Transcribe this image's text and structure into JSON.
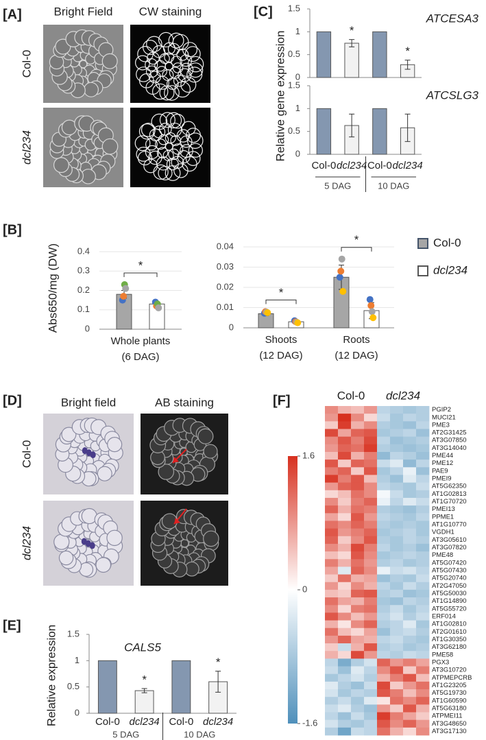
{
  "panel_labels": [
    "[A]",
    "[B]",
    "[C]",
    "[D]",
    "[E]",
    "[F]"
  ],
  "micrographs": [
    {
      "columns": [
        "Bright Field",
        "CW staining"
      ],
      "rows": [
        "Col-0",
        "dcl234"
      ]
    },
    {
      "columns": [
        "Bright field",
        "AB staining"
      ],
      "rows": [
        "Col-0",
        "dcl234"
      ]
    }
  ],
  "chart_data": [
    {
      "type": "bar",
      "ylabel": "Relative gene expression",
      "categories": [
        "Col-0",
        "dcl234",
        "Col-0",
        "dcl234"
      ],
      "groups": [
        "5 DAG",
        "10 DAG"
      ],
      "colors": [
        "#8497b0",
        "#f2f2f2",
        "#8497b0",
        "#f2f2f2"
      ],
      "ylim": [
        0,
        1.5
      ],
      "yticks": [
        0,
        0.5,
        1,
        1.5
      ],
      "subplots": [
        {
          "title": "ATCESA3",
          "values": [
            1,
            0.75,
            1,
            0.28
          ],
          "errors": [
            null,
            0.08,
            null,
            0.1
          ],
          "significance": [
            null,
            "*",
            null,
            "*"
          ]
        },
        {
          "title": "ATCSLG3",
          "values": [
            1,
            0.63,
            1,
            0.58
          ],
          "errors": [
            null,
            0.25,
            null,
            0.3
          ],
          "significance": [
            null,
            null,
            null,
            null
          ]
        }
      ]
    },
    {
      "type": "bar",
      "ylabel": "Abs650/mg (DW)",
      "series": [
        {
          "name": "Col-0",
          "color": "#a6a6a6"
        },
        {
          "name": "dcl234",
          "color": "#ffffff"
        }
      ],
      "subplots": [
        {
          "categories": [
            "Whole plants"
          ],
          "notes": [
            "(6 DAG)"
          ],
          "ylim": [
            0,
            0.4
          ],
          "yticks": [
            0,
            0.1,
            0.2,
            0.3,
            0.4
          ],
          "values": [
            [
              0.18
            ],
            [
              0.13
            ]
          ],
          "errors": [
            [
              0.02
            ],
            [
              0.01
            ]
          ],
          "point_colors": [
            "#4472c4",
            "#ed7d31",
            "#70ad47",
            "#a5a5a5"
          ],
          "points": [
            [
              [
                0.15,
                0.17,
                0.23,
                0.21
              ]
            ],
            [
              [
                0.14,
                0.12,
                0.13,
                0.11
              ]
            ]
          ],
          "significance": [
            "*"
          ]
        },
        {
          "categories": [
            "Shoots",
            "Roots"
          ],
          "notes": [
            "(12 DAG)",
            "(12 DAG)"
          ],
          "ylim": [
            0,
            0.04
          ],
          "yticks": [
            0,
            0.01,
            0.02,
            0.03,
            0.04
          ],
          "values": [
            [
              0.007,
              0.025
            ],
            [
              0.003,
              0.0085
            ]
          ],
          "errors": [
            [
              0.001,
              0.006
            ],
            [
              0.0005,
              0.004
            ]
          ],
          "point_colors": [
            "#4472c4",
            "#ed7d31",
            "#a5a5a5",
            "#ffc000"
          ],
          "points": [
            [
              [
                0.0072,
                0.008,
                0.0078,
                0.0075
              ],
              [
                0.025,
                0.028,
                0.034,
                0.018
              ]
            ],
            [
              [
                0.0035,
                0.003,
                0.0028,
                0.0025
              ],
              [
                0.014,
                0.011,
                0.008,
                0.005
              ]
            ]
          ],
          "significance": [
            "*",
            "*"
          ]
        }
      ]
    },
    {
      "type": "bar",
      "title": "CALS5",
      "ylabel": "Relative expression",
      "categories": [
        "Col-0",
        "dcl234",
        "Col-0",
        "dcl234"
      ],
      "groups": [
        "5 DAG",
        "10 DAG"
      ],
      "colors": [
        "#8497b0",
        "#f2f2f2",
        "#8497b0",
        "#f2f2f2"
      ],
      "ylim": [
        0,
        1.5
      ],
      "yticks": [
        0,
        0.5,
        1,
        1.5
      ],
      "values": [
        1,
        0.43,
        1,
        0.6
      ],
      "errors": [
        null,
        0.04,
        null,
        0.2
      ],
      "significance": [
        null,
        "*",
        null,
        "*"
      ]
    },
    {
      "type": "heatmap",
      "columns": [
        "Col-0",
        "dcl234"
      ],
      "zlim": [
        -1.6,
        1.6
      ],
      "colorbar_ticks": [
        1.6,
        0,
        -1.6
      ],
      "colors": [
        "#4f90bb",
        "#ffffff",
        "#d7301f"
      ],
      "rows": [
        "PGIP2",
        "MUCI21",
        "PME3",
        "AT2G31425",
        "AT3G07850",
        "AT3G14040",
        "PME44",
        "PME12",
        "PAE9",
        "PMEI9",
        "AT5G62350",
        "AT1G02813",
        "AT1G70720",
        "PMEI13",
        "PPME1",
        "AT1G10770",
        "VGDH1",
        "AT3G05610",
        "AT3G07820",
        "PME48",
        "AT5G07420",
        "AT5G07430",
        "AT5G20740",
        "AT2G47050",
        "AT5G50030",
        "AT1G14890",
        "AT5G55720",
        "ERF014",
        "AT1G02810",
        "AT2G01610",
        "AT1G30350",
        "AT3G62180",
        "PME58",
        "PGX3",
        "AT3G10720",
        "ATPMEPCRB",
        "AT1G23205",
        "AT5G19730",
        "AT1G60590",
        "AT5G63180",
        "ATPMEI11",
        "AT3G48650",
        "AT3G17130"
      ],
      "values": [
        [
          0.9,
          0.6,
          0.5,
          0.8,
          -0.6,
          -0.7,
          -0.8,
          -0.7
        ],
        [
          0.8,
          1.6,
          0.9,
          0.3,
          -0.5,
          -0.8,
          -0.6,
          -0.7
        ],
        [
          0.4,
          1.5,
          0.6,
          0.9,
          -0.7,
          -0.8,
          -0.9,
          -0.6
        ],
        [
          1.4,
          0.7,
          1.2,
          1.3,
          -0.8,
          -0.7,
          -0.6,
          -0.9
        ],
        [
          0.9,
          1.3,
          1.0,
          1.4,
          -0.6,
          -0.9,
          -0.8,
          -0.7
        ],
        [
          0.8,
          1.2,
          1.1,
          1.5,
          -0.7,
          -0.8,
          -0.9,
          -0.8
        ],
        [
          0.5,
          1.4,
          0.6,
          1.0,
          -1.0,
          -0.6,
          -0.7,
          -0.9
        ],
        [
          1.3,
          0.4,
          1.2,
          1.1,
          -0.5,
          -0.3,
          -1.0,
          -0.6
        ],
        [
          1.0,
          1.2,
          0.4,
          1.3,
          -0.8,
          -0.6,
          -0.2,
          -0.9
        ],
        [
          1.5,
          1.0,
          1.3,
          0.5,
          -0.7,
          -0.9,
          -0.3,
          -0.6
        ],
        [
          0.8,
          1.2,
          1.3,
          0.9,
          -0.6,
          -0.7,
          -0.8,
          -0.5
        ],
        [
          0.3,
          0.5,
          1.1,
          0.9,
          -0.1,
          -0.5,
          -0.8,
          -0.7
        ],
        [
          0.9,
          0.4,
          1.0,
          1.2,
          -0.2,
          -0.6,
          -0.3,
          -0.5
        ],
        [
          1.2,
          0.6,
          1.1,
          1.0,
          -0.7,
          -0.8,
          -0.9,
          -0.7
        ],
        [
          0.7,
          0.3,
          1.3,
          0.8,
          -0.6,
          -0.7,
          -0.8,
          -0.6
        ],
        [
          1.1,
          0.9,
          1.2,
          1.0,
          -0.7,
          -0.8,
          -0.7,
          -0.8
        ],
        [
          1.3,
          0.8,
          1.0,
          1.2,
          -0.8,
          -0.7,
          -0.6,
          -0.8
        ],
        [
          1.2,
          0.4,
          0.9,
          1.3,
          -0.7,
          -0.8,
          -0.6,
          -0.7
        ],
        [
          0.9,
          0.6,
          1.4,
          1.0,
          -0.6,
          -0.8,
          -0.7,
          -0.9
        ],
        [
          0.5,
          0.3,
          1.3,
          0.9,
          -0.8,
          -0.7,
          -0.6,
          -0.7
        ],
        [
          1.0,
          0.6,
          1.1,
          0.8,
          -0.7,
          -0.6,
          -0.8,
          -0.7
        ],
        [
          0.7,
          -0.3,
          1.2,
          0.9,
          -0.2,
          -0.5,
          -0.4,
          -0.6
        ],
        [
          0.4,
          1.1,
          0.6,
          0.7,
          -0.9,
          -0.7,
          -0.8,
          -0.5
        ],
        [
          0.8,
          0.3,
          0.9,
          0.6,
          -0.6,
          -0.8,
          -0.5,
          -0.7
        ],
        [
          0.5,
          0.4,
          1.2,
          1.3,
          -0.7,
          -0.6,
          -0.9,
          -0.8
        ],
        [
          1.1,
          0.7,
          0.6,
          1.0,
          -0.8,
          -0.9,
          -0.6,
          -0.7
        ],
        [
          0.9,
          0.3,
          1.0,
          1.1,
          -0.7,
          -0.5,
          -0.8,
          -0.6
        ],
        [
          1.3,
          0.9,
          0.5,
          0.8,
          -0.6,
          -0.4,
          -0.7,
          -0.5
        ],
        [
          0.6,
          0.2,
          0.9,
          1.2,
          -0.7,
          -0.6,
          -0.3,
          -0.8
        ],
        [
          1.1,
          0.5,
          0.3,
          0.7,
          -0.9,
          -0.6,
          -0.5,
          -0.7
        ],
        [
          0.8,
          1.2,
          0.7,
          0.6,
          -0.6,
          -0.5,
          -0.7,
          -0.8
        ],
        [
          0.4,
          -0.5,
          0.6,
          1.3,
          -0.7,
          -0.6,
          -0.8,
          -0.7
        ],
        [
          0.6,
          0.3,
          1.4,
          0.8,
          -0.6,
          -0.7,
          -0.5,
          -0.6
        ],
        [
          -0.6,
          -1.2,
          -0.7,
          -0.4,
          1.2,
          0.8,
          1.0,
          0.7
        ],
        [
          -0.5,
          -0.9,
          -0.3,
          -0.6,
          0.9,
          1.3,
          0.4,
          1.0
        ],
        [
          -0.8,
          -0.6,
          -0.4,
          -0.7,
          0.6,
          1.0,
          1.3,
          0.5
        ],
        [
          -0.3,
          -0.7,
          -0.9,
          -0.5,
          1.4,
          0.4,
          0.8,
          1.1
        ],
        [
          -0.4,
          -0.8,
          -0.6,
          -0.7,
          1.3,
          1.0,
          0.5,
          0.9
        ],
        [
          -0.7,
          -0.5,
          -0.8,
          -0.3,
          0.2,
          1.1,
          0.9,
          1.2
        ],
        [
          -0.5,
          -0.3,
          -0.7,
          -0.9,
          0.8,
          0.4,
          1.3,
          0.6
        ],
        [
          -0.6,
          -0.9,
          -0.5,
          -0.8,
          1.5,
          1.0,
          0.7,
          0.4
        ],
        [
          -0.4,
          -0.7,
          -0.8,
          -0.6,
          1.3,
          0.9,
          1.2,
          0.8
        ],
        [
          -0.7,
          -1.3,
          -0.5,
          -0.6,
          1.1,
          0.6,
          0.3,
          0.9
        ]
      ]
    }
  ]
}
